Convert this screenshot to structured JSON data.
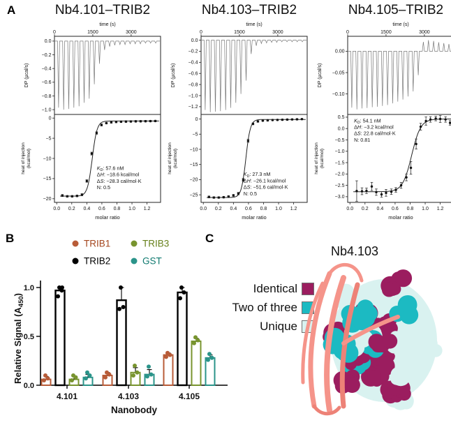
{
  "panels": {
    "a": "A",
    "b": "B",
    "c": "C"
  },
  "chart_data": [
    {
      "type": "itc",
      "title": "Nb4.101–TRIB2",
      "top": {
        "xlabel": "time (s)",
        "ylabel": "DP (µcal/s)",
        "xlim": [
          0,
          4150
        ],
        "xticks": [
          0,
          1500,
          3000
        ],
        "xdec": 0,
        "ylim": [
          0.07,
          -1.07
        ],
        "yticks": [
          0,
          -0.2,
          -0.4,
          -0.6,
          -0.8,
          -1
        ],
        "ydec": 1,
        "spikes": [
          [
            160,
            -0.97
          ],
          [
            360,
            -1.0
          ],
          [
            560,
            -0.99
          ],
          [
            760,
            -0.97
          ],
          [
            960,
            -0.95
          ],
          [
            1160,
            -0.9
          ],
          [
            1360,
            -0.84
          ],
          [
            1560,
            -0.63
          ],
          [
            1760,
            -0.33
          ],
          [
            1960,
            -0.13
          ],
          [
            2160,
            -0.08
          ],
          [
            2360,
            -0.06
          ],
          [
            2560,
            -0.05
          ],
          [
            2760,
            -0.05
          ],
          [
            2960,
            -0.04
          ],
          [
            3160,
            -0.04
          ],
          [
            3360,
            -0.04
          ],
          [
            3560,
            -0.03
          ],
          [
            3760,
            -0.03
          ],
          [
            3960,
            -0.03
          ]
        ]
      },
      "bottom": {
        "xlabel": "molar ratio",
        "ylabel_lines": [
          "heat of injection",
          "(kcal/mol)"
        ],
        "xlim": [
          -0.03,
          1.38
        ],
        "xticks": [
          0,
          0.2,
          0.4,
          0.6,
          0.8,
          1,
          1.2
        ],
        "xdec": 1,
        "ylim": [
          0.9,
          -20.9
        ],
        "yticks": [
          0,
          -5,
          -10,
          -15,
          -20
        ],
        "ydec": 0,
        "points": [
          [
            0.075,
            -19.2,
            0.25
          ],
          [
            0.14,
            -19.4,
            0.2
          ],
          [
            0.205,
            -19.4,
            0.2
          ],
          [
            0.27,
            -19.3,
            0.2
          ],
          [
            0.335,
            -19.0,
            0.25
          ],
          [
            0.4,
            -15.6,
            0.3
          ],
          [
            0.465,
            -8.8,
            0.35
          ],
          [
            0.53,
            -3.7,
            0.3
          ],
          [
            0.595,
            -1.7,
            0.25
          ],
          [
            0.66,
            -1.25,
            0.2
          ],
          [
            0.725,
            -1.05,
            0.2
          ],
          [
            0.79,
            -0.95,
            0.2
          ],
          [
            0.855,
            -0.9,
            0.2
          ],
          [
            0.92,
            -0.87,
            0.2
          ],
          [
            0.985,
            -0.84,
            0.2
          ],
          [
            1.05,
            -0.81,
            0.2
          ],
          [
            1.115,
            -0.79,
            0.2
          ],
          [
            1.18,
            -0.77,
            0.2
          ],
          [
            1.245,
            -0.75,
            0.2
          ],
          [
            1.31,
            -0.73,
            0.2
          ]
        ],
        "fit": {
          "low": -19.35,
          "high": -0.72,
          "x0": 0.472,
          "k": 0.032
        },
        "params": [
          {
            "label": "KD",
            "value": "57.6 nM"
          },
          {
            "label": "ΔH",
            "value": "−18.6 kcal/mol"
          },
          {
            "label": "ΔS",
            "value": "−28.3 cal/mol·K"
          },
          {
            "label": "N",
            "value": "0.5"
          }
        ],
        "params_pos": {
          "x": 0.4,
          "y": 0.63
        }
      }
    },
    {
      "type": "itc",
      "title": "Nb4.103–TRIB2",
      "top": {
        "xlabel": "time (s)",
        "ylabel": "DP (µcal/s)",
        "xlim": [
          0,
          4150
        ],
        "xticks": [
          0,
          1500,
          3000
        ],
        "xdec": 0,
        "ylim": [
          0.07,
          -1.34
        ],
        "yticks": [
          0,
          -0.2,
          -0.4,
          -0.6,
          -0.8,
          -1,
          -1.2
        ],
        "ydec": 1,
        "spikes": [
          [
            160,
            -1.26
          ],
          [
            360,
            -1.3
          ],
          [
            560,
            -1.29
          ],
          [
            760,
            -1.28
          ],
          [
            960,
            -1.26
          ],
          [
            1160,
            -1.22
          ],
          [
            1360,
            -1.13
          ],
          [
            1560,
            -0.97
          ],
          [
            1760,
            -0.73
          ],
          [
            1960,
            -0.25
          ],
          [
            2160,
            -0.1
          ],
          [
            2360,
            -0.06
          ],
          [
            2560,
            -0.05
          ],
          [
            2760,
            -0.04
          ],
          [
            2960,
            -0.04
          ],
          [
            3160,
            -0.03
          ],
          [
            3360,
            -0.03
          ],
          [
            3560,
            -0.03
          ],
          [
            3760,
            -0.03
          ],
          [
            3960,
            -0.03
          ]
        ]
      },
      "bottom": {
        "xlabel": "molar ratio",
        "ylabel_lines": [
          "heat of injection",
          "(kcal/mol)"
        ],
        "xlim": [
          -0.03,
          1.38
        ],
        "xticks": [
          0,
          0.2,
          0.4,
          0.6,
          0.8,
          1,
          1.2
        ],
        "xdec": 1,
        "ylim": [
          1.5,
          -27.5
        ],
        "yticks": [
          0,
          -5,
          -10,
          -15,
          -20,
          -25
        ],
        "ydec": 0,
        "points": [
          [
            0.075,
            -25.7,
            0.3
          ],
          [
            0.14,
            -25.9,
            0.25
          ],
          [
            0.205,
            -25.9,
            0.25
          ],
          [
            0.27,
            -25.8,
            0.25
          ],
          [
            0.335,
            -25.6,
            0.3
          ],
          [
            0.4,
            -25.2,
            0.3
          ],
          [
            0.465,
            -24.6,
            0.4
          ],
          [
            0.53,
            -20.1,
            0.5
          ],
          [
            0.595,
            -7.2,
            0.5
          ],
          [
            0.66,
            -1.6,
            0.3
          ],
          [
            0.725,
            -0.8,
            0.25
          ],
          [
            0.79,
            -0.55,
            0.2
          ],
          [
            0.855,
            -0.45,
            0.2
          ],
          [
            0.92,
            -0.35,
            0.2
          ],
          [
            0.985,
            -0.3,
            0.2
          ],
          [
            1.05,
            -0.25,
            0.2
          ],
          [
            1.115,
            -0.2,
            0.2
          ],
          [
            1.18,
            -0.15,
            0.2
          ],
          [
            1.245,
            -0.1,
            0.2
          ],
          [
            1.31,
            -0.05,
            0.2
          ]
        ],
        "fit": {
          "low": -25.9,
          "high": -0.15,
          "x0": 0.565,
          "k": 0.03
        },
        "params": [
          {
            "label": "KD",
            "value": "27.3 nM"
          },
          {
            "label": "ΔH",
            "value": "−26.1 kcal/mol"
          },
          {
            "label": "ΔS",
            "value": "−51.6 cal/mol·K"
          },
          {
            "label": "N",
            "value": "0.5"
          }
        ],
        "params_pos": {
          "x": 0.4,
          "y": 0.7
        }
      }
    },
    {
      "type": "itc",
      "title": "Nb4.105–TRIB2",
      "top": {
        "xlabel": "time (s)",
        "ylabel": "DP (µcal/s)",
        "xlim": [
          0,
          4150
        ],
        "xticks": [
          0,
          1500,
          3000
        ],
        "xdec": 0,
        "ylim": [
          0.035,
          -0.148
        ],
        "yticks": [
          0,
          -0.05,
          -0.1
        ],
        "ydec": 2,
        "spikes": [
          [
            160,
            -0.132
          ],
          [
            360,
            -0.136
          ],
          [
            560,
            -0.134
          ],
          [
            760,
            -0.133
          ],
          [
            960,
            -0.131
          ],
          [
            1160,
            -0.13
          ],
          [
            1360,
            -0.128
          ],
          [
            1560,
            -0.126
          ],
          [
            1760,
            -0.122
          ],
          [
            1960,
            -0.118
          ],
          [
            2160,
            -0.113
          ],
          [
            2360,
            -0.106
          ],
          [
            2560,
            -0.094
          ],
          [
            2760,
            -0.056
          ],
          [
            2960,
            0.022
          ],
          [
            3160,
            0.026
          ],
          [
            3360,
            0.024
          ],
          [
            3560,
            0.021
          ],
          [
            3760,
            0.019
          ],
          [
            3960,
            0.017
          ]
        ]
      },
      "bottom": {
        "xlabel": "molar ratio",
        "ylabel_lines": [
          "heat of injection",
          "(kcal/mol)"
        ],
        "xlim": [
          -0.03,
          1.38
        ],
        "xticks": [
          0,
          0.2,
          0.4,
          0.6,
          0.8,
          1,
          1.2
        ],
        "xdec": 1,
        "ylim": [
          0.62,
          -3.25
        ],
        "yticks": [
          0.5,
          0,
          -0.5,
          -1,
          -1.5,
          -2,
          -2.5,
          -3
        ],
        "ydec": 1,
        "points": [
          [
            0.09,
            -2.75,
            0.45
          ],
          [
            0.16,
            -2.76,
            0.15
          ],
          [
            0.22,
            -2.74,
            0.12
          ],
          [
            0.29,
            -2.55,
            0.18
          ],
          [
            0.35,
            -2.8,
            0.14
          ],
          [
            0.42,
            -2.9,
            0.12
          ],
          [
            0.48,
            -2.83,
            0.15
          ],
          [
            0.55,
            -2.78,
            0.12
          ],
          [
            0.61,
            -2.7,
            0.1
          ],
          [
            0.68,
            -2.5,
            0.13
          ],
          [
            0.75,
            -2.15,
            0.15
          ],
          [
            0.81,
            -1.73,
            0.28
          ],
          [
            0.88,
            -0.68,
            0.22
          ],
          [
            0.94,
            0.08,
            0.15
          ],
          [
            1.01,
            0.33,
            0.18
          ],
          [
            1.07,
            0.4,
            0.12
          ],
          [
            1.14,
            0.44,
            0.1
          ],
          [
            1.2,
            0.42,
            0.15
          ],
          [
            1.27,
            0.4,
            0.12
          ],
          [
            1.33,
            0.25,
            0.1
          ]
        ],
        "fit": {
          "low": -2.78,
          "high": 0.42,
          "x0": 0.82,
          "k": 0.06
        },
        "params": [
          {
            "label": "KD",
            "value": "54.1 nM"
          },
          {
            "label": "ΔH",
            "value": "−3.2 kcal/mol"
          },
          {
            "label": "ΔS",
            "value": "22.8 cal/mol·K"
          },
          {
            "label": "N",
            "value": "0.81"
          }
        ],
        "params_pos": {
          "x": 0.06,
          "y": 0.09
        }
      }
    },
    {
      "type": "bar",
      "xlabel": "Nanobody",
      "ylabel_main": "Relative Signal (A",
      "ylabel_sub": "450",
      "ylabel_close": ")",
      "yticks": [
        0,
        0.5,
        1
      ],
      "ydec": 1,
      "ylim": [
        0,
        1.07
      ],
      "categories": [
        "4.101",
        "4.103",
        "4.105"
      ],
      "series": [
        {
          "name": "TRIB1",
          "color": "#B85C38",
          "text_color": "#A4461E",
          "values": [
            0.06,
            0.1,
            0.31
          ],
          "errors": [
            0.03,
            0.03,
            0.02
          ],
          "dots": [
            [
              0.05,
              0.07,
              0.1
            ],
            [
              0.08,
              0.11,
              0.13
            ],
            [
              0.29,
              0.31,
              0.33
            ]
          ]
        },
        {
          "name": "TRIB2",
          "color": "#000000",
          "text_color": "#000000",
          "values": [
            0.97,
            0.87,
            0.95
          ],
          "errors": [
            0.04,
            0.13,
            0.05
          ],
          "dots": [
            [
              0.91,
              0.97,
              1.0,
              1.0
            ],
            [
              0.78,
              0.8,
              1.0
            ],
            [
              0.89,
              0.95,
              1.0
            ]
          ]
        },
        {
          "name": "TRIB3",
          "color": "#78942F",
          "text_color": "#66801A",
          "values": [
            0.06,
            0.13,
            0.45
          ],
          "errors": [
            0.03,
            0.05,
            0.03
          ],
          "dots": [
            [
              0.05,
              0.08,
              0.1
            ],
            [
              0.1,
              0.13,
              0.2
            ],
            [
              0.43,
              0.46,
              0.49
            ]
          ]
        },
        {
          "name": "GST",
          "color": "#2B948A",
          "text_color": "#107A70",
          "values": [
            0.08,
            0.11,
            0.28
          ],
          "errors": [
            0.03,
            0.05,
            0.03
          ],
          "dots": [
            [
              0.07,
              0.1,
              0.13
            ],
            [
              0.09,
              0.11,
              0.19
            ],
            [
              0.26,
              0.28,
              0.32
            ]
          ]
        }
      ]
    }
  ],
  "panel_c": {
    "title": "Nb4.103",
    "legend": [
      {
        "label": "Identical",
        "color": "#9B1D5F"
      },
      {
        "label": "Two of three",
        "color": "#1CBAC2"
      },
      {
        "label": "Unique",
        "color": "#D9F2F0"
      }
    ],
    "ribbon_color": "#F5948A"
  }
}
